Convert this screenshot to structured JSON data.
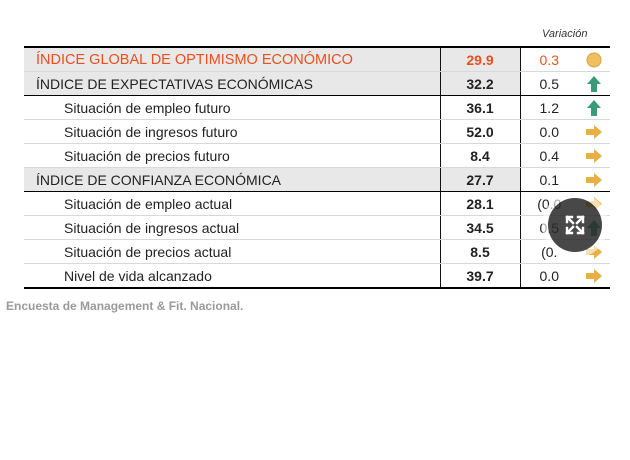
{
  "table": {
    "variation_header": "Variación",
    "rows": [
      {
        "label": "ÍNDICE GLOBAL DE OPTIMISMO ECONÓMICO",
        "value": "29.9",
        "variation": "0.3",
        "icon": "circle-neutral-icon",
        "kind": "global"
      },
      {
        "label": "ÍNDICE DE EXPECTATIVAS ECONÓMICAS",
        "value": "32.2",
        "variation": "0.5",
        "icon": "arrow-up-icon",
        "kind": "section"
      },
      {
        "label": "Situación de empleo futuro",
        "value": "36.1",
        "variation": "1.2",
        "icon": "arrow-up-icon",
        "kind": "sub"
      },
      {
        "label": "Situación de ingresos futuro",
        "value": "52.0",
        "variation": "0.0",
        "icon": "arrow-right-icon",
        "kind": "sub"
      },
      {
        "label": "Situación de precios futuro",
        "value": "8.4",
        "variation": "0.4",
        "icon": "arrow-right-icon",
        "kind": "sub"
      },
      {
        "label": "ÍNDICE DE CONFIANZA ECONÓMICA",
        "value": "27.7",
        "variation": "0.1",
        "icon": "arrow-right-icon",
        "kind": "section"
      },
      {
        "label": "Situación de empleo actual",
        "value": "28.1",
        "variation": "(0.0",
        "icon": "arrow-right-icon",
        "kind": "sub"
      },
      {
        "label": "Situación de ingresos actual",
        "value": "34.5",
        "variation": "0.5",
        "icon": "arrow-up-icon",
        "kind": "sub"
      },
      {
        "label": "Situación de precios actual",
        "value": "8.5",
        "variation": "(0.",
        "icon": "arrow-right-icon",
        "kind": "sub"
      },
      {
        "label": "Nivel de vida alcanzado",
        "value": "39.7",
        "variation": "0.0",
        "icon": "arrow-right-icon",
        "kind": "sub"
      }
    ]
  },
  "caption": "Encuesta de Management & Fit. Nacional.",
  "colors": {
    "accent": "#e8501f",
    "arrow_up": "#3a9a7a",
    "arrow_right": "#e8b040",
    "circle_neutral": "#f0c060"
  },
  "expand_button": {
    "icon": "expand-icon"
  }
}
